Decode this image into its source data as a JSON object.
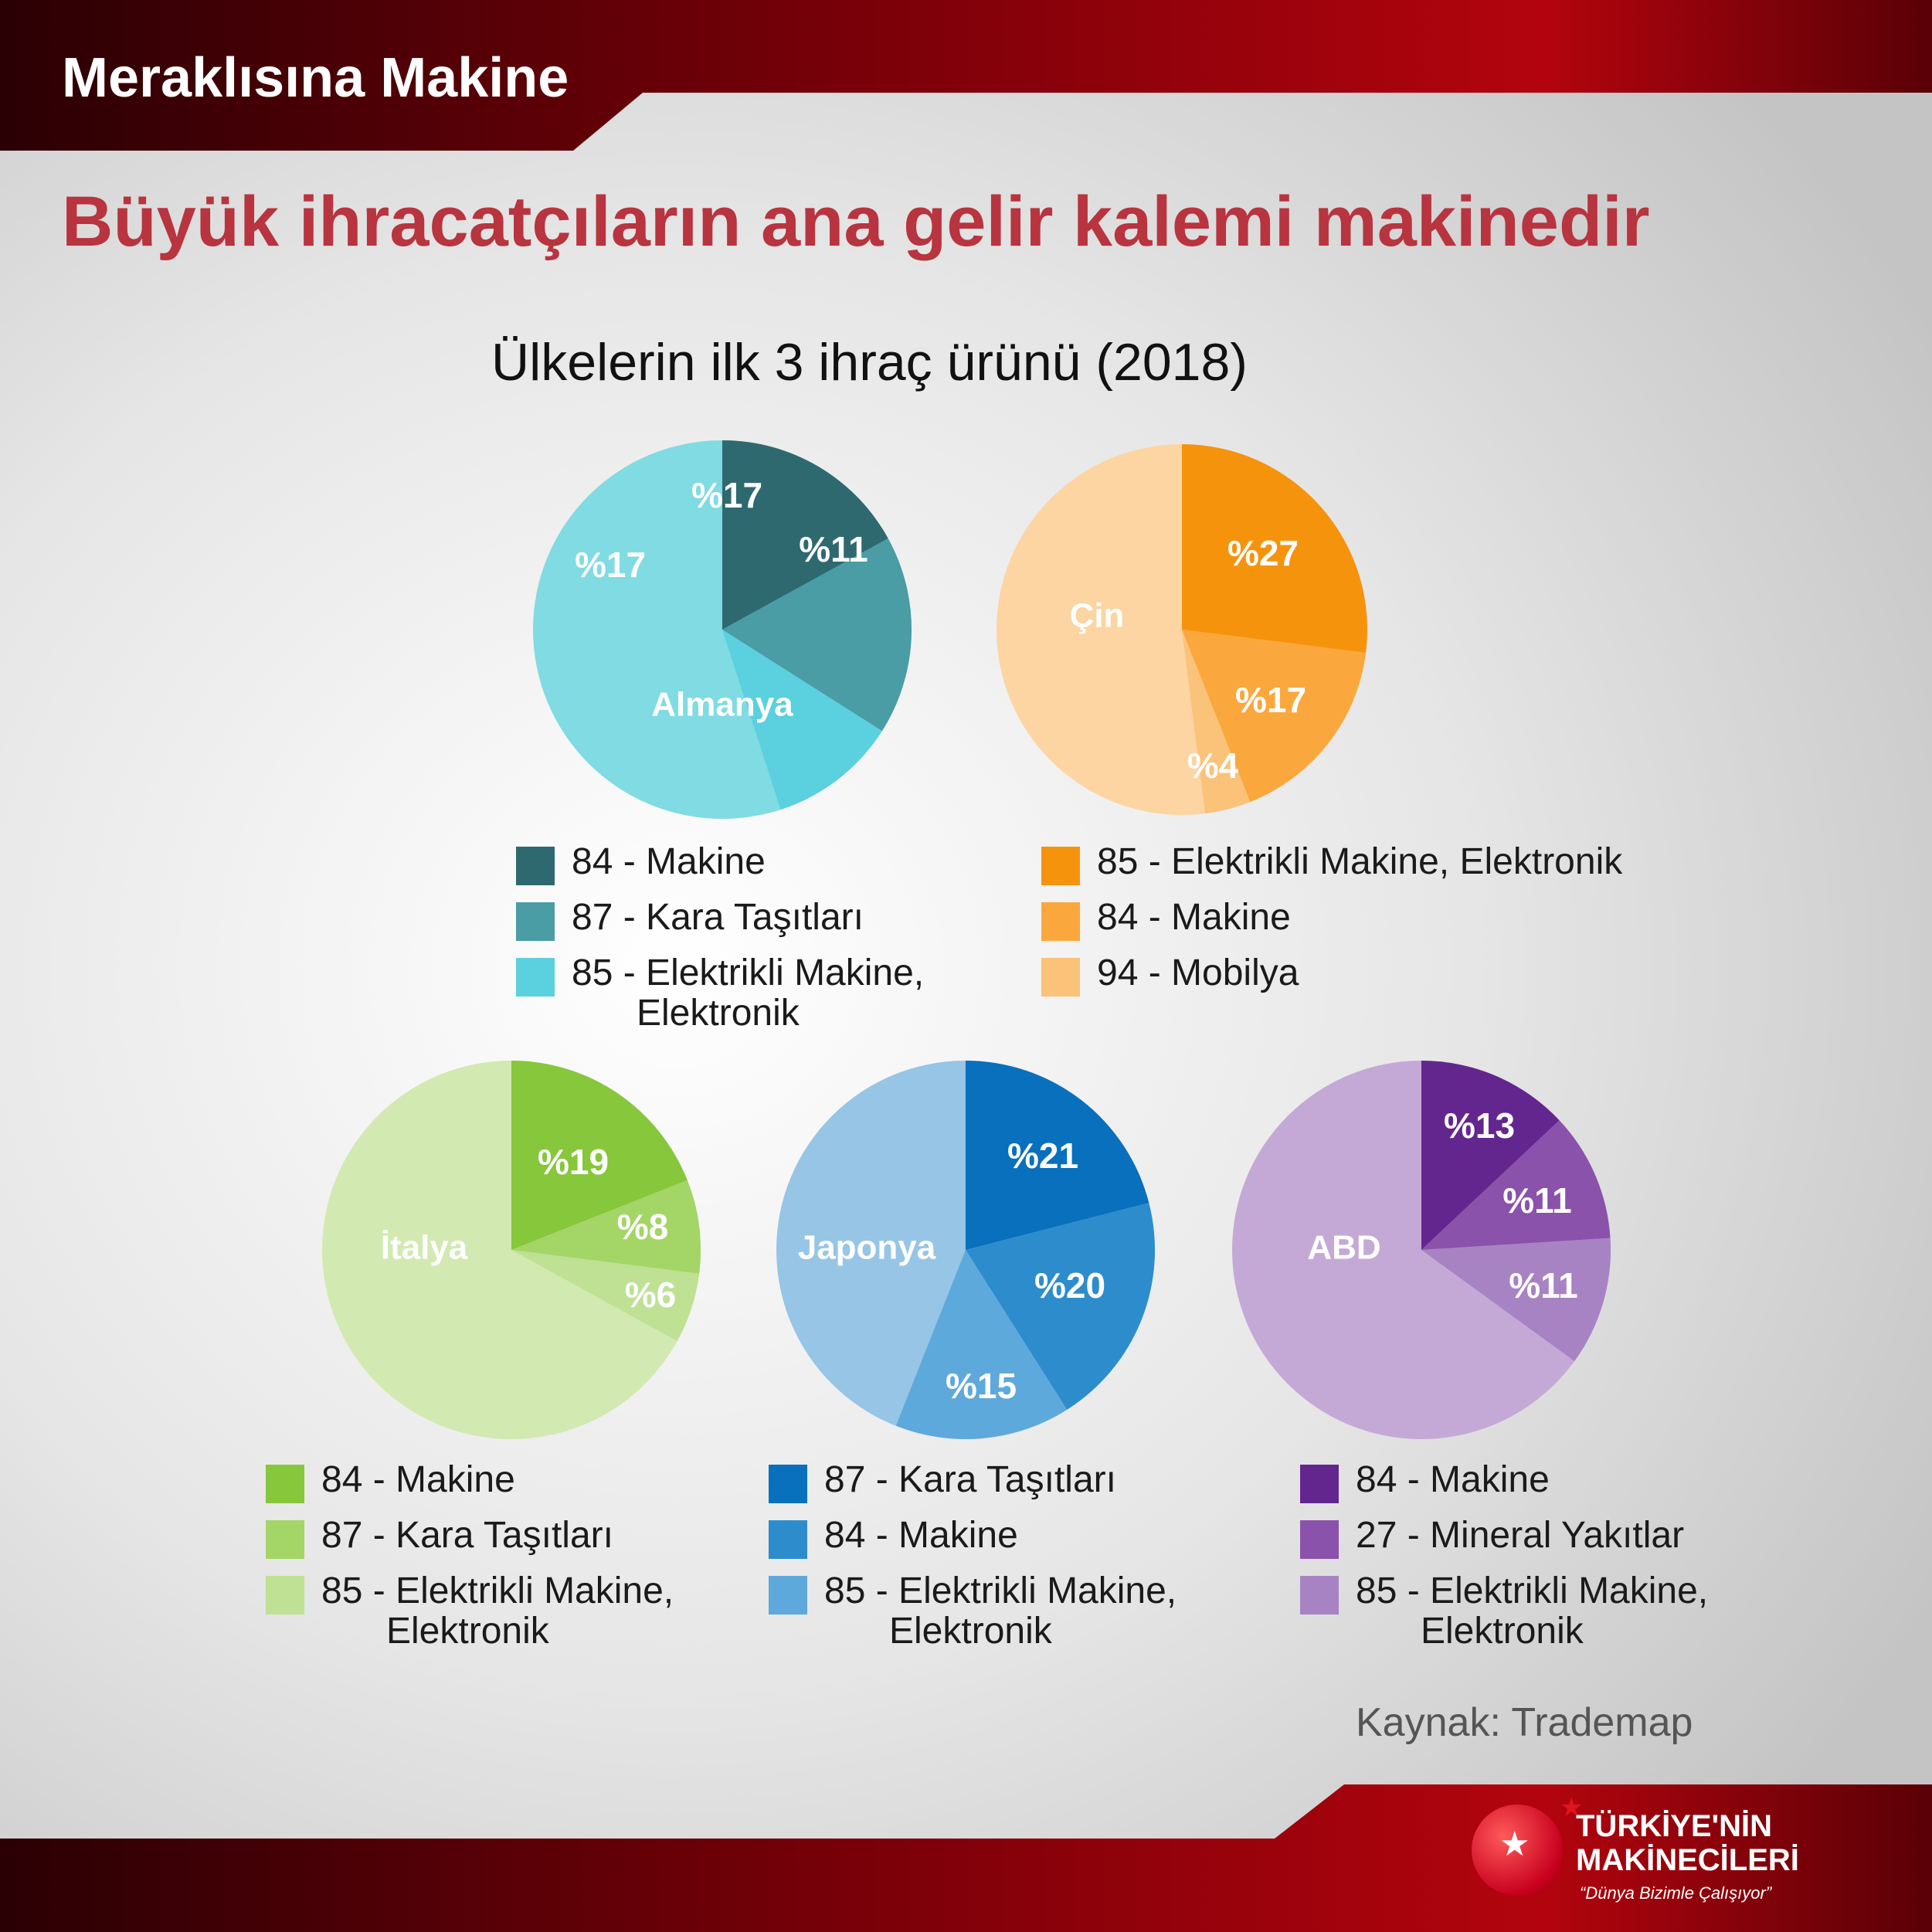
{
  "header": {
    "label": "Meraklısına Makine"
  },
  "title": "Büyük ihracatçıların ana gelir kalemi makinedir",
  "subtitle": "Ülkelerin ilk 3 ihraç ürünü (2018)",
  "source": "Kaynak: Trademap",
  "logo": {
    "line1": "TÜRKİYE'NİN",
    "line2": "MAKİNECİLERİ",
    "slogan": "“Dünya Bizimle Çalışıyor”"
  },
  "chart_data": [
    {
      "type": "pie",
      "country": "Almanya",
      "slices": [
        {
          "legend": "84 - Makine",
          "value": 17,
          "label": "%17",
          "color": "#2f6970"
        },
        {
          "legend": "87 - Kara Taşıtları",
          "value": 17,
          "label": "%17",
          "color": "#4a9ca5"
        },
        {
          "legend": "85 - Elektrikli Makine, Elektronik",
          "value": 11,
          "label": "%11",
          "color": "#5bd0de"
        }
      ],
      "rest_color": "#80dbe3"
    },
    {
      "type": "pie",
      "country": "Çin",
      "slices": [
        {
          "legend": "85 - Elektrikli Makine, Elektronik",
          "value": 27,
          "label": "%27",
          "color": "#f6930d"
        },
        {
          "legend": "84 - Makine",
          "value": 17,
          "label": "%17",
          "color": "#faa83e"
        },
        {
          "legend": "94 - Mobilya",
          "value": 4,
          "label": "%4",
          "color": "#fbc27a"
        }
      ],
      "rest_color": "#fcd5a2"
    },
    {
      "type": "pie",
      "country": "İtalya",
      "slices": [
        {
          "legend": "84 - Makine",
          "value": 19,
          "label": "%19",
          "color": "#86c73b"
        },
        {
          "legend": "87 - Kara Taşıtları",
          "value": 8,
          "label": "%8",
          "color": "#a4d567"
        },
        {
          "legend": "85 - Elektrikli Makine, Elektronik",
          "value": 6,
          "label": "%6",
          "color": "#bee194"
        }
      ],
      "rest_color": "#d2e9b1"
    },
    {
      "type": "pie",
      "country": "Japonya",
      "slices": [
        {
          "legend": "87 - Kara Taşıtları",
          "value": 21,
          "label": "%21",
          "color": "#0870bd"
        },
        {
          "legend": "84 - Makine",
          "value": 20,
          "label": "%20",
          "color": "#2d8dcc"
        },
        {
          "legend": "85 - Elektrikli Makine, Elektronik",
          "value": 15,
          "label": "%15",
          "color": "#5ea9dc"
        }
      ],
      "rest_color": "#96c5e6"
    },
    {
      "type": "pie",
      "country": "ABD",
      "slices": [
        {
          "legend": "84 - Makine",
          "value": 13,
          "label": "%13",
          "color": "#63268e"
        },
        {
          "legend": "27 - Mineral Yakıtlar",
          "value": 11,
          "label": "%11",
          "color": "#8a52aa"
        },
        {
          "legend": "85 - Elektrikli Makine, Elektronik",
          "value": 11,
          "label": "%11",
          "color": "#a883c3"
        }
      ],
      "rest_color": "#c4a9d6"
    }
  ]
}
